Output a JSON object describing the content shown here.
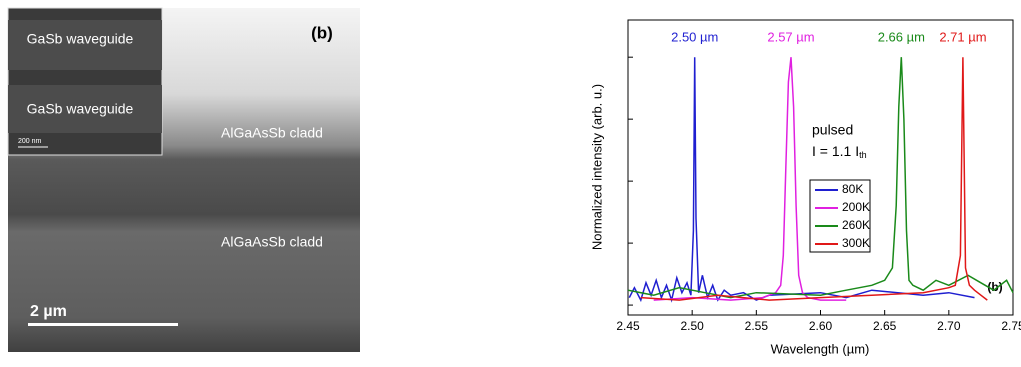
{
  "image": {
    "inset_layer_top": "GaSb waveguide",
    "inset_layer_bottom": "GaSb waveguide",
    "inset_scale": "200 nm",
    "panel_label": "(b)",
    "cladding_top": "AlGaAsSb cladd",
    "cladding_bottom": "AlGaAsSb cladd",
    "scale_bar": "2 µm"
  },
  "chart_data": {
    "type": "line",
    "x_label": "Wavelength (µm)",
    "y_label": "Normalized intensity (arb. u.)",
    "panel_label": "(b)",
    "peak_labels": [
      "2.50 µm",
      "2.57 µm",
      "2.66 µm",
      "2.71 µm"
    ],
    "mode_label": "pulsed",
    "current_label": {
      "main": "I = 1.1 I",
      "sub": "th"
    },
    "xlim": [
      2.45,
      2.75
    ],
    "xticks": [
      2.45,
      {
        "value": 2.5,
        "label": "2.50"
      },
      2.55,
      {
        "value": 2.6,
        "label": "2.60"
      },
      2.65,
      {
        "value": 2.7,
        "label": "2.70"
      },
      2.75
    ],
    "ylim": [
      -0.04,
      1.15
    ],
    "yticks": [
      0,
      0.25,
      0.5,
      0.75,
      1
    ],
    "series": [
      {
        "name": "80K",
        "color": "#1f1fd0",
        "x": [
          2.451,
          2.455,
          2.46,
          2.464,
          2.468,
          2.472,
          2.476,
          2.48,
          2.484,
          2.488,
          2.492,
          2.496,
          2.499,
          2.501,
          2.502,
          2.503,
          2.505,
          2.508,
          2.512,
          2.516,
          2.52,
          2.525,
          2.53,
          2.54,
          2.55,
          2.56,
          2.6,
          2.62,
          2.64,
          2.68,
          2.7,
          2.72
        ],
        "values": [
          0.03,
          0.07,
          0.02,
          0.09,
          0.04,
          0.1,
          0.03,
          0.08,
          0.02,
          0.11,
          0.05,
          0.09,
          0.04,
          0.3,
          1.0,
          0.35,
          0.05,
          0.12,
          0.03,
          0.08,
          0.02,
          0.06,
          0.04,
          0.05,
          0.02,
          0.04,
          0.05,
          0.03,
          0.06,
          0.04,
          0.05,
          0.03
        ]
      },
      {
        "name": "200K",
        "color": "#e020e0",
        "x": [
          2.47,
          2.5,
          2.53,
          2.555,
          2.565,
          2.569,
          2.571,
          2.573,
          2.575,
          2.577,
          2.579,
          2.581,
          2.583,
          2.586,
          2.59,
          2.6,
          2.62
        ],
        "values": [
          0.02,
          0.03,
          0.02,
          0.03,
          0.05,
          0.08,
          0.2,
          0.55,
          0.9,
          1.0,
          0.8,
          0.4,
          0.12,
          0.05,
          0.03,
          0.02,
          0.02
        ]
      },
      {
        "name": "260K",
        "color": "#1a8a1a",
        "x": [
          2.45,
          2.47,
          2.49,
          2.51,
          2.53,
          2.55,
          2.6,
          2.62,
          2.64,
          2.65,
          2.656,
          2.659,
          2.661,
          2.663,
          2.665,
          2.667,
          2.669,
          2.672,
          2.68,
          2.69,
          2.7,
          2.715,
          2.725,
          2.735,
          2.745,
          2.75
        ],
        "values": [
          0.06,
          0.04,
          0.07,
          0.05,
          0.03,
          0.05,
          0.04,
          0.06,
          0.08,
          0.1,
          0.15,
          0.4,
          0.8,
          1.0,
          0.75,
          0.3,
          0.1,
          0.08,
          0.06,
          0.1,
          0.08,
          0.12,
          0.09,
          0.06,
          0.1,
          0.05
        ]
      },
      {
        "name": "300K",
        "color": "#e01818",
        "x": [
          2.46,
          2.49,
          2.52,
          2.56,
          2.6,
          2.64,
          2.68,
          2.7,
          2.705,
          2.709,
          2.711,
          2.713,
          2.716,
          2.72,
          2.725,
          2.73
        ],
        "values": [
          0.03,
          0.02,
          0.04,
          0.02,
          0.03,
          0.04,
          0.05,
          0.07,
          0.08,
          0.2,
          1.0,
          0.15,
          0.08,
          0.06,
          0.04,
          0.02
        ]
      }
    ]
  }
}
